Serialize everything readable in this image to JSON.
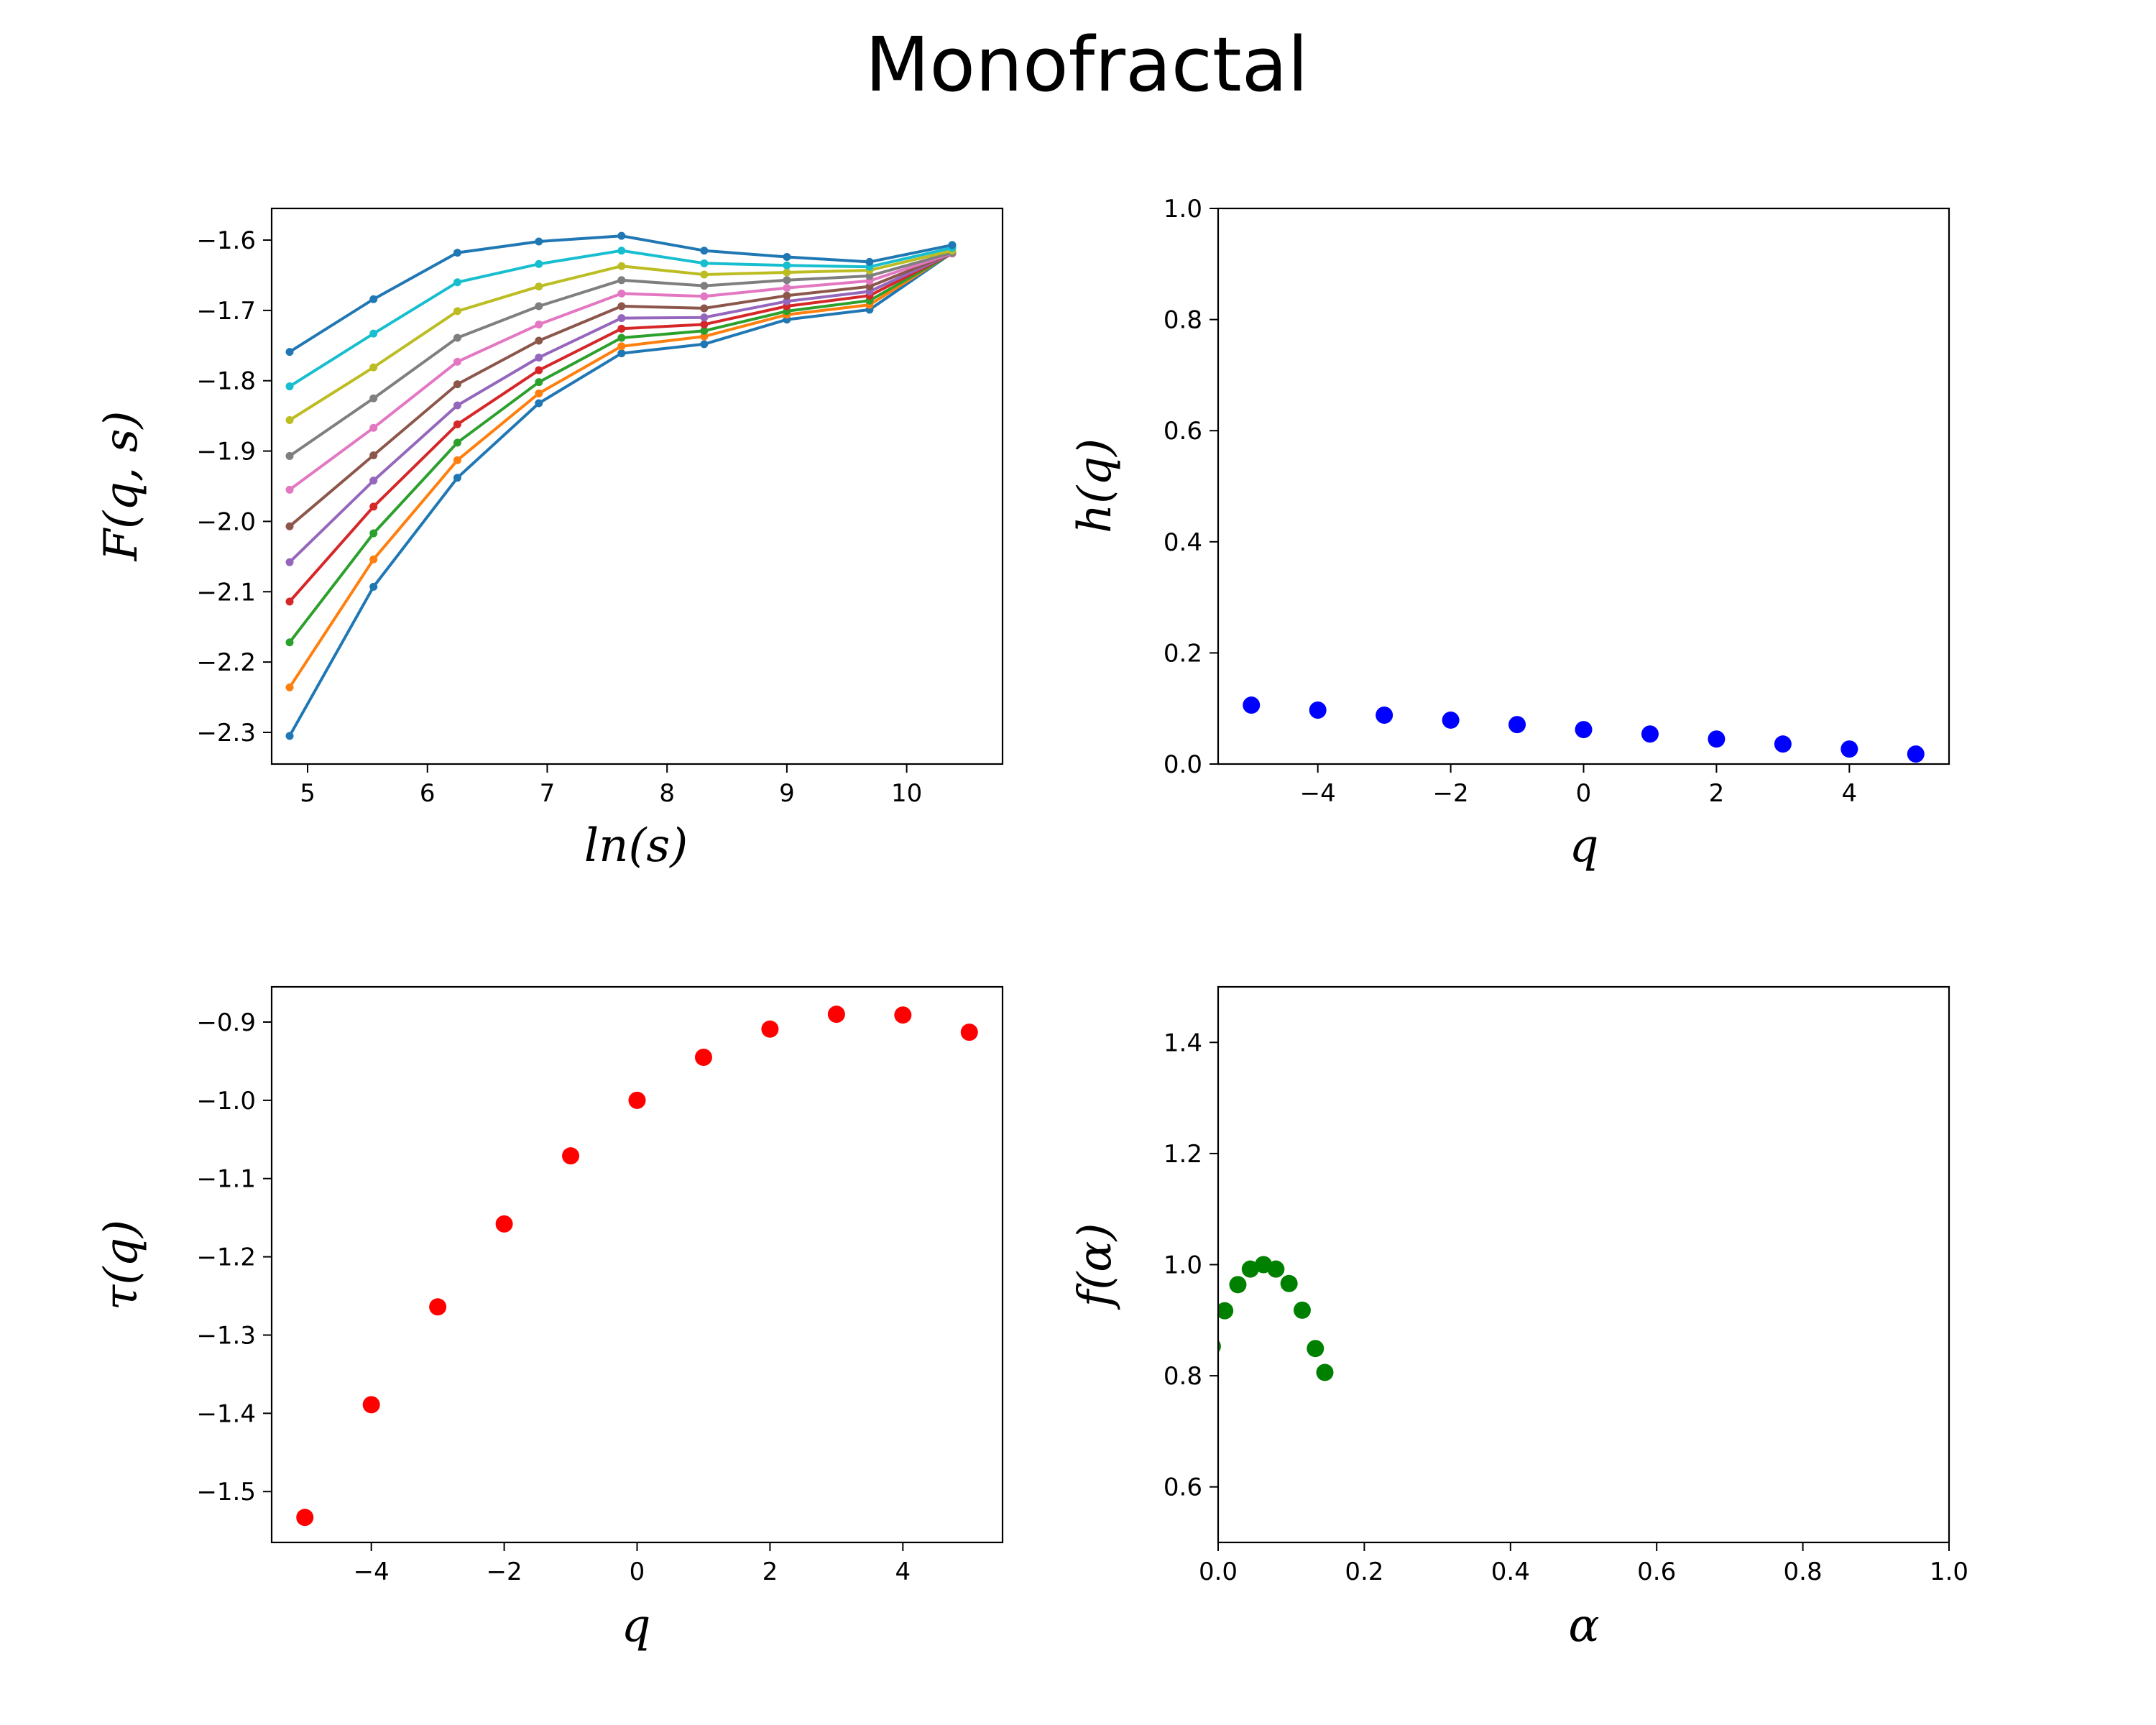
{
  "figure": {
    "title": "Monofractal"
  },
  "chart_data": [
    {
      "type": "line",
      "id": "fluctuation",
      "xlabel": "ln(s)",
      "ylabel": "F(q, s)",
      "xlim": [
        4.7,
        10.8
      ],
      "ylim": [
        -2.345,
        -1.555
      ],
      "xticks": [
        5,
        6,
        7,
        8,
        9,
        10
      ],
      "xtick_labels": [
        "5",
        "6",
        "7",
        "8",
        "9",
        "10"
      ],
      "yticks": [
        -2.3,
        -2.2,
        -2.1,
        -2.0,
        -1.9,
        -1.8,
        -1.7,
        -1.6
      ],
      "ytick_labels": [
        "−2.3",
        "−2.2",
        "−2.1",
        "−2.0",
        "−1.9",
        "−1.8",
        "−1.7",
        "−1.6"
      ],
      "grid": false,
      "x": [
        4.85,
        5.55,
        6.25,
        6.93,
        7.62,
        8.31,
        9.0,
        9.69,
        10.38
      ],
      "series": [
        {
          "color": "#1f77b4",
          "values": [
            -2.305,
            -2.093,
            -1.938,
            -1.832,
            -1.761,
            -1.748,
            -1.713,
            -1.699,
            -1.618
          ]
        },
        {
          "color": "#ff7f0e",
          "values": [
            -2.236,
            -2.054,
            -1.913,
            -1.818,
            -1.751,
            -1.737,
            -1.706,
            -1.692,
            -1.618
          ]
        },
        {
          "color": "#2ca02c",
          "values": [
            -2.172,
            -2.017,
            -1.888,
            -1.802,
            -1.739,
            -1.729,
            -1.701,
            -1.686,
            -1.619
          ]
        },
        {
          "color": "#d62728",
          "values": [
            -2.114,
            -1.979,
            -1.862,
            -1.785,
            -1.726,
            -1.72,
            -1.694,
            -1.679,
            -1.619
          ]
        },
        {
          "color": "#9467bd",
          "values": [
            -2.058,
            -1.942,
            -1.835,
            -1.767,
            -1.711,
            -1.71,
            -1.687,
            -1.673,
            -1.619
          ]
        },
        {
          "color": "#8c564b",
          "values": [
            -2.007,
            -1.906,
            -1.805,
            -1.743,
            -1.694,
            -1.697,
            -1.679,
            -1.666,
            -1.619
          ]
        },
        {
          "color": "#e377c2",
          "values": [
            -1.955,
            -1.867,
            -1.773,
            -1.72,
            -1.676,
            -1.68,
            -1.668,
            -1.658,
            -1.619
          ]
        },
        {
          "color": "#7f7f7f",
          "values": [
            -1.907,
            -1.825,
            -1.739,
            -1.694,
            -1.657,
            -1.665,
            -1.657,
            -1.651,
            -1.618
          ]
        },
        {
          "color": "#bcbd22",
          "values": [
            -1.856,
            -1.781,
            -1.701,
            -1.666,
            -1.637,
            -1.649,
            -1.646,
            -1.643,
            -1.615
          ]
        },
        {
          "color": "#17becf",
          "values": [
            -1.808,
            -1.733,
            -1.66,
            -1.634,
            -1.615,
            -1.633,
            -1.636,
            -1.638,
            -1.611
          ]
        },
        {
          "color": "#1f77b4",
          "values": [
            -1.759,
            -1.684,
            -1.618,
            -1.602,
            -1.594,
            -1.615,
            -1.624,
            -1.631,
            -1.607
          ]
        }
      ]
    },
    {
      "type": "scatter",
      "id": "hurst",
      "xlabel": "q",
      "ylabel": "h(q)",
      "xlim": [
        -5.5,
        5.5
      ],
      "ylim": [
        0.0,
        1.0
      ],
      "xticks": [
        -4,
        -2,
        0,
        2,
        4
      ],
      "xtick_labels": [
        "−4",
        "−2",
        "0",
        "2",
        "4"
      ],
      "yticks": [
        0.0,
        0.2,
        0.4,
        0.6,
        0.8,
        1.0
      ],
      "ytick_labels": [
        "0.0",
        "0.2",
        "0.4",
        "0.6",
        "0.8",
        "1.0"
      ],
      "grid": false,
      "color": "#0000ff",
      "x": [
        -5,
        -4,
        -3,
        -2,
        -1,
        0,
        1,
        2,
        3,
        4,
        5
      ],
      "y": [
        0.106,
        0.097,
        0.088,
        0.079,
        0.071,
        0.062,
        0.054,
        0.045,
        0.036,
        0.027,
        0.018
      ]
    },
    {
      "type": "scatter",
      "id": "tau",
      "xlabel": "q",
      "ylabel": "τ(q)",
      "xlim": [
        -5.5,
        5.5
      ],
      "ylim": [
        -1.565,
        -0.855
      ],
      "xticks": [
        -4,
        -2,
        0,
        2,
        4
      ],
      "xtick_labels": [
        "−4",
        "−2",
        "0",
        "2",
        "4"
      ],
      "yticks": [
        -1.5,
        -1.4,
        -1.3,
        -1.2,
        -1.1,
        -1.0,
        -0.9
      ],
      "ytick_labels": [
        "−1.5",
        "−1.4",
        "−1.3",
        "−1.2",
        "−1.1",
        "−1.0",
        "−0.9"
      ],
      "grid": false,
      "color": "#ff0000",
      "x": [
        -5,
        -4,
        -3,
        -2,
        -1,
        0,
        1,
        2,
        3,
        4,
        5
      ],
      "y": [
        -1.533,
        -1.389,
        -1.264,
        -1.158,
        -1.071,
        -1.0,
        -0.945,
        -0.909,
        -0.89,
        -0.891,
        -0.913
      ]
    },
    {
      "type": "scatter",
      "id": "spectrum",
      "xlabel": "α",
      "ylabel": "f(α)",
      "xlim": [
        0.0,
        1.0
      ],
      "ylim": [
        0.5,
        1.5
      ],
      "xticks": [
        0.0,
        0.2,
        0.4,
        0.6,
        0.8,
        1.0
      ],
      "xtick_labels": [
        "0.0",
        "0.2",
        "0.4",
        "0.6",
        "0.8",
        "1.0"
      ],
      "yticks": [
        0.6,
        0.8,
        1.0,
        1.2,
        1.4
      ],
      "ytick_labels": [
        "0.6",
        "0.8",
        "1.0",
        "1.2",
        "1.4"
      ],
      "grid": false,
      "color": "#008000",
      "x": [
        -0.008,
        0.009,
        0.027,
        0.044,
        0.062,
        0.079,
        0.097,
        0.115,
        0.133,
        0.146
      ],
      "y": [
        0.853,
        0.917,
        0.964,
        0.992,
        1.0,
        0.992,
        0.966,
        0.918,
        0.849,
        0.806
      ]
    }
  ]
}
